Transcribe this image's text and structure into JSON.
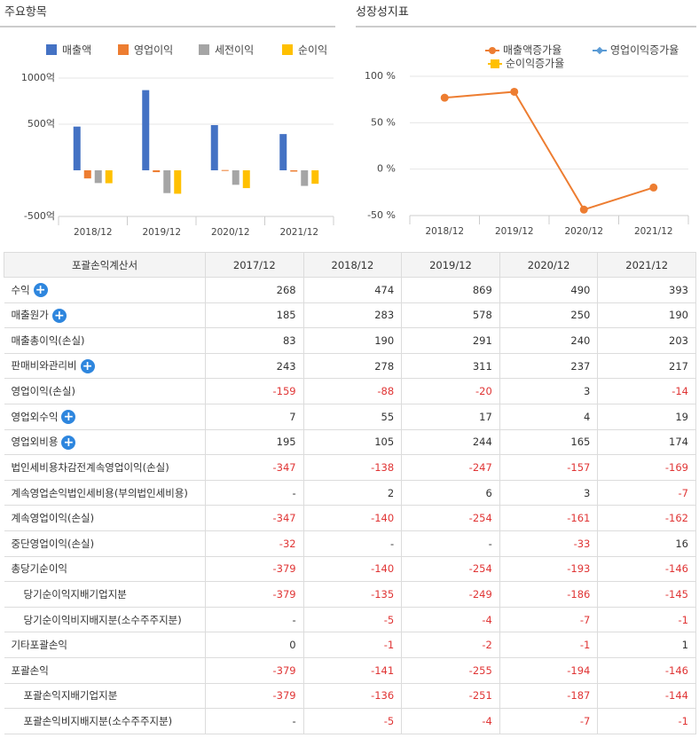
{
  "chart_data": [
    {
      "type": "bar",
      "title": "주요항목",
      "categories": [
        "2018/12",
        "2019/12",
        "2020/12",
        "2021/12"
      ],
      "series": [
        {
          "name": "매출액",
          "color": "#4472c4",
          "values": [
            474,
            869,
            490,
            393
          ]
        },
        {
          "name": "영업이익",
          "color": "#ed7d31",
          "values": [
            -88,
            -20,
            3,
            -14
          ]
        },
        {
          "name": "세전이익",
          "color": "#a5a5a5",
          "values": [
            -138,
            -247,
            -157,
            -169
          ]
        },
        {
          "name": "순이익",
          "color": "#ffc000",
          "values": [
            -140,
            -254,
            -193,
            -146
          ]
        }
      ],
      "ylim": [
        -500,
        1000
      ],
      "yticks": [
        {
          "value": 1000,
          "label": "1000억"
        },
        {
          "value": 500,
          "label": "500억"
        },
        {
          "value": -500,
          "label": "-500억"
        }
      ],
      "grid": true
    },
    {
      "type": "line",
      "title": "성장성지표",
      "categories": [
        "2018/12",
        "2019/12",
        "2020/12",
        "2021/12"
      ],
      "series": [
        {
          "name": "매출액증가율",
          "color": "#ed7d31",
          "values": [
            76.9,
            83.3,
            -43.6,
            -19.8
          ]
        },
        {
          "name": "영업이익증가율",
          "color": "#5b9bd5",
          "values": [
            null,
            null,
            null,
            null
          ]
        },
        {
          "name": "순이익증가율",
          "color": "#ffc000",
          "values": [
            null,
            null,
            null,
            null
          ]
        }
      ],
      "ylim": [
        -50,
        100
      ],
      "yticks": [
        {
          "value": 100,
          "label": "100 %"
        },
        {
          "value": 50,
          "label": "50 %"
        },
        {
          "value": 0,
          "label": "0 %"
        },
        {
          "value": -50,
          "label": "-50 %"
        }
      ],
      "grid": true
    }
  ],
  "table": {
    "header": [
      "포괄손익계산서",
      "2017/12",
      "2018/12",
      "2019/12",
      "2020/12",
      "2021/12"
    ],
    "rows": [
      {
        "label": "수익",
        "expand": true,
        "values": [
          268,
          474,
          869,
          490,
          393
        ]
      },
      {
        "label": "매출원가",
        "expand": true,
        "values": [
          185,
          283,
          578,
          250,
          190
        ]
      },
      {
        "label": "매출총이익(손실)",
        "values": [
          83,
          190,
          291,
          240,
          203
        ]
      },
      {
        "label": "판매비와관리비",
        "expand": true,
        "values": [
          243,
          278,
          311,
          237,
          217
        ]
      },
      {
        "label": "영업이익(손실)",
        "values": [
          -159,
          -88,
          -20,
          3,
          -14
        ]
      },
      {
        "label": "영업외수익",
        "expand": true,
        "values": [
          7,
          55,
          17,
          4,
          19
        ]
      },
      {
        "label": "영업외비용",
        "expand": true,
        "values": [
          195,
          105,
          244,
          165,
          174
        ]
      },
      {
        "label": "법인세비용차감전계속영업이익(손실)",
        "values": [
          -347,
          -138,
          -247,
          -157,
          -169
        ]
      },
      {
        "label": "계속영업손익법인세비용(부의법인세비용)",
        "values": [
          "-",
          2,
          6,
          3,
          -7
        ]
      },
      {
        "label": "계속영업이익(손실)",
        "values": [
          -347,
          -140,
          -254,
          -161,
          -162
        ]
      },
      {
        "label": "중단영업이익(손실)",
        "values": [
          -32,
          "-",
          "-",
          -33,
          16
        ]
      },
      {
        "label": "총당기순이익",
        "values": [
          -379,
          -140,
          -254,
          -193,
          -146
        ]
      },
      {
        "label": "당기순이익지배기업지분",
        "sub": true,
        "values": [
          -379,
          -135,
          -249,
          -186,
          -145
        ]
      },
      {
        "label": "당기순이익비지배지분(소수주주지분)",
        "sub": true,
        "values": [
          "-",
          -5,
          -4,
          -7,
          -1
        ]
      },
      {
        "label": "기타포괄손익",
        "values": [
          0,
          -1,
          -2,
          -1,
          1
        ]
      },
      {
        "label": "포괄손익",
        "values": [
          -379,
          -141,
          -255,
          -194,
          -146
        ]
      },
      {
        "label": "포괄손익지배기업지분",
        "sub": true,
        "values": [
          -379,
          -136,
          -251,
          -187,
          -144
        ]
      },
      {
        "label": "포괄손익비지배지분(소수주주지분)",
        "sub": true,
        "values": [
          "-",
          -5,
          -4,
          -7,
          -1
        ]
      }
    ]
  }
}
